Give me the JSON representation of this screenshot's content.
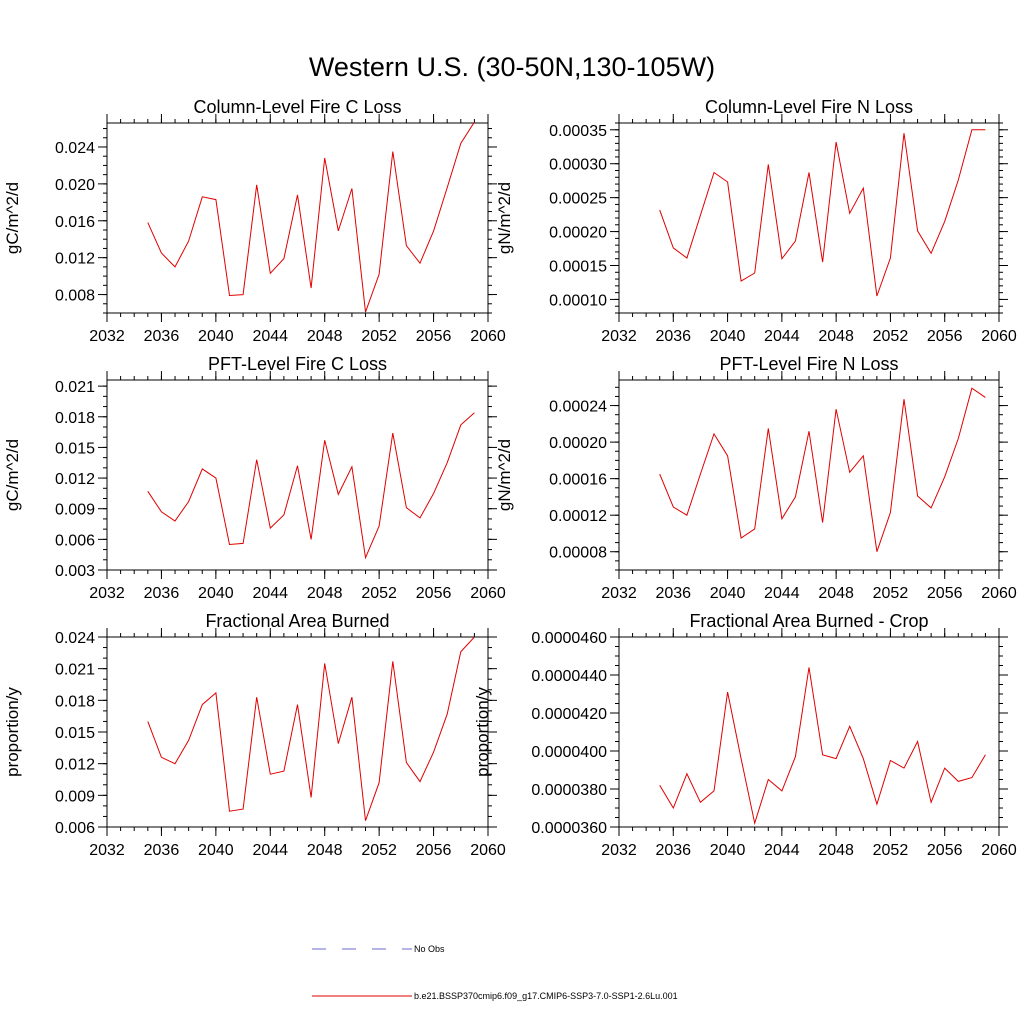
{
  "page_title": "Western U.S. (30-50N,130-105W)",
  "legend": [
    {
      "label": "No Obs",
      "color": "#6a6acd",
      "style": "dashed"
    },
    {
      "label": "b.e21.BSSP370cmip6.f09_g17.CMIP6-SSP3-7.0-SSP1-2.6Lu.001",
      "color": "#e00000",
      "style": "solid"
    }
  ],
  "chart_data": [
    {
      "type": "line",
      "title": "Column-Level Fire C Loss",
      "ylabel": "gC/m^2/d",
      "xlabel": "",
      "xlim": [
        2032,
        2060
      ],
      "ylim": [
        0.006,
        0.0266
      ],
      "xticks": [
        "2032",
        "2036",
        "2040",
        "2044",
        "2048",
        "2052",
        "2056",
        "2060"
      ],
      "yticks": [
        {
          "v": 0.008,
          "label": "0.008"
        },
        {
          "v": 0.012,
          "label": "0.012"
        },
        {
          "v": 0.016,
          "label": "0.016"
        },
        {
          "v": 0.02,
          "label": "0.020"
        },
        {
          "v": 0.024,
          "label": "0.024"
        }
      ],
      "yminor_step": 0.001,
      "x": [
        2035,
        2036,
        2037,
        2038,
        2039,
        2040,
        2041,
        2042,
        2043,
        2044,
        2045,
        2046,
        2047,
        2048,
        2049,
        2050,
        2051,
        2052,
        2053,
        2054,
        2055,
        2056,
        2057,
        2058,
        2059
      ],
      "series": [
        {
          "color": "#e00000",
          "values": [
            0.0158,
            0.0125,
            0.011,
            0.0138,
            0.0186,
            0.0183,
            0.0079,
            0.008,
            0.0199,
            0.0103,
            0.0119,
            0.0188,
            0.0087,
            0.0228,
            0.0149,
            0.0195,
            0.0061,
            0.0102,
            0.0235,
            0.0133,
            0.0114,
            0.0149,
            0.0196,
            0.0244,
            0.0267
          ]
        }
      ]
    },
    {
      "type": "line",
      "title": "Column-Level Fire N Loss",
      "ylabel": "gN/m^2/d",
      "xlabel": "",
      "xlim": [
        2032,
        2060
      ],
      "ylim": [
        8e-05,
        0.00036
      ],
      "xticks": [
        "2032",
        "2036",
        "2040",
        "2044",
        "2048",
        "2052",
        "2056",
        "2060"
      ],
      "yticks": [
        {
          "v": 0.0001,
          "label": "0.00010"
        },
        {
          "v": 0.00015,
          "label": "0.00015"
        },
        {
          "v": 0.0002,
          "label": "0.00020"
        },
        {
          "v": 0.00025,
          "label": "0.00025"
        },
        {
          "v": 0.0003,
          "label": "0.00030"
        },
        {
          "v": 0.00035,
          "label": "0.00035"
        }
      ],
      "yminor_step": 1e-05,
      "x": [
        2035,
        2036,
        2037,
        2038,
        2039,
        2040,
        2041,
        2042,
        2043,
        2044,
        2045,
        2046,
        2047,
        2048,
        2049,
        2050,
        2051,
        2052,
        2053,
        2054,
        2055,
        2056,
        2057,
        2058,
        2059
      ],
      "series": [
        {
          "color": "#e00000",
          "values": [
            0.000232,
            0.000176,
            0.000161,
            0.000224,
            0.000287,
            0.000273,
            0.000127,
            0.000139,
            0.000299,
            0.00016,
            0.000186,
            0.000287,
            0.000155,
            0.000332,
            0.000227,
            0.000264,
            0.000105,
            0.000161,
            0.000345,
            0.000201,
            0.000168,
            0.000215,
            0.000276,
            0.00035,
            0.00035
          ]
        }
      ]
    },
    {
      "type": "line",
      "title": "PFT-Level Fire C Loss",
      "ylabel": "gC/m^2/d",
      "xlabel": "",
      "xlim": [
        2032,
        2060
      ],
      "ylim": [
        0.003,
        0.0216
      ],
      "xticks": [
        "2032",
        "2036",
        "2040",
        "2044",
        "2048",
        "2052",
        "2056",
        "2060"
      ],
      "yticks": [
        {
          "v": 0.003,
          "label": "0.003"
        },
        {
          "v": 0.006,
          "label": "0.006"
        },
        {
          "v": 0.009,
          "label": "0.009"
        },
        {
          "v": 0.012,
          "label": "0.012"
        },
        {
          "v": 0.015,
          "label": "0.015"
        },
        {
          "v": 0.018,
          "label": "0.018"
        },
        {
          "v": 0.021,
          "label": "0.021"
        }
      ],
      "yminor_step": 0.001,
      "x": [
        2035,
        2036,
        2037,
        2038,
        2039,
        2040,
        2041,
        2042,
        2043,
        2044,
        2045,
        2046,
        2047,
        2048,
        2049,
        2050,
        2051,
        2052,
        2053,
        2054,
        2055,
        2056,
        2057,
        2058,
        2059
      ],
      "series": [
        {
          "color": "#e00000",
          "values": [
            0.0107,
            0.0087,
            0.0078,
            0.0097,
            0.0129,
            0.012,
            0.0055,
            0.0056,
            0.0138,
            0.0071,
            0.0084,
            0.0132,
            0.006,
            0.0157,
            0.0104,
            0.0131,
            0.0042,
            0.0073,
            0.0164,
            0.0091,
            0.0081,
            0.0105,
            0.0135,
            0.0172,
            0.0184
          ]
        }
      ]
    },
    {
      "type": "line",
      "title": "PFT-Level Fire N Loss",
      "ylabel": "gN/m^2/d",
      "xlabel": "",
      "xlim": [
        2032,
        2060
      ],
      "ylim": [
        6e-05,
        0.000268
      ],
      "xticks": [
        "2032",
        "2036",
        "2040",
        "2044",
        "2048",
        "2052",
        "2056",
        "2060"
      ],
      "yticks": [
        {
          "v": 8e-05,
          "label": "0.00008"
        },
        {
          "v": 0.00012,
          "label": "0.00012"
        },
        {
          "v": 0.00016,
          "label": "0.00016"
        },
        {
          "v": 0.0002,
          "label": "0.00020"
        },
        {
          "v": 0.00024,
          "label": "0.00024"
        }
      ],
      "yminor_step": 1e-05,
      "x": [
        2035,
        2036,
        2037,
        2038,
        2039,
        2040,
        2041,
        2042,
        2043,
        2044,
        2045,
        2046,
        2047,
        2048,
        2049,
        2050,
        2051,
        2052,
        2053,
        2054,
        2055,
        2056,
        2057,
        2058,
        2059
      ],
      "series": [
        {
          "color": "#e00000",
          "values": [
            0.000165,
            0.000129,
            0.00012,
            0.000165,
            0.000209,
            0.000185,
            9.5e-05,
            0.000105,
            0.000215,
            0.000116,
            0.00014,
            0.000212,
            0.000112,
            0.000236,
            0.000167,
            0.000185,
            8e-05,
            0.000123,
            0.000247,
            0.000141,
            0.000128,
            0.000162,
            0.000204,
            0.000259,
            0.000249
          ]
        }
      ]
    },
    {
      "type": "line",
      "title": "Fractional Area Burned",
      "ylabel": "proportion/y",
      "xlabel": "",
      "xlim": [
        2032,
        2060
      ],
      "ylim": [
        0.006,
        0.024
      ],
      "xticks": [
        "2032",
        "2036",
        "2040",
        "2044",
        "2048",
        "2052",
        "2056",
        "2060"
      ],
      "yticks": [
        {
          "v": 0.006,
          "label": "0.006"
        },
        {
          "v": 0.009,
          "label": "0.009"
        },
        {
          "v": 0.012,
          "label": "0.012"
        },
        {
          "v": 0.015,
          "label": "0.015"
        },
        {
          "v": 0.018,
          "label": "0.018"
        },
        {
          "v": 0.021,
          "label": "0.021"
        },
        {
          "v": 0.024,
          "label": "0.024"
        }
      ],
      "yminor_step": 0.001,
      "x": [
        2035,
        2036,
        2037,
        2038,
        2039,
        2040,
        2041,
        2042,
        2043,
        2044,
        2045,
        2046,
        2047,
        2048,
        2049,
        2050,
        2051,
        2052,
        2053,
        2054,
        2055,
        2056,
        2057,
        2058,
        2059
      ],
      "series": [
        {
          "color": "#e00000",
          "values": [
            0.016,
            0.0126,
            0.012,
            0.0142,
            0.0176,
            0.0187,
            0.0075,
            0.0077,
            0.0183,
            0.011,
            0.0113,
            0.0176,
            0.0088,
            0.0215,
            0.0139,
            0.0183,
            0.0066,
            0.0102,
            0.0217,
            0.0121,
            0.0103,
            0.0131,
            0.0167,
            0.0226,
            0.024
          ]
        }
      ]
    },
    {
      "type": "line",
      "title": "Fractional Area Burned - Crop",
      "ylabel": "proportion/y",
      "xlabel": "",
      "xlim": [
        2032,
        2060
      ],
      "ylim": [
        3.6e-05,
        4.6e-05
      ],
      "xticks": [
        "2032",
        "2036",
        "2040",
        "2044",
        "2048",
        "2052",
        "2056",
        "2060"
      ],
      "yticks": [
        {
          "v": 3.6e-05,
          "label": "0.0000360"
        },
        {
          "v": 3.8e-05,
          "label": "0.0000380"
        },
        {
          "v": 4e-05,
          "label": "0.0000400"
        },
        {
          "v": 4.2e-05,
          "label": "0.0000420"
        },
        {
          "v": 4.4e-05,
          "label": "0.0000440"
        },
        {
          "v": 4.6e-05,
          "label": "0.0000460"
        }
      ],
      "yminor_step": 5e-07,
      "x": [
        2035,
        2036,
        2037,
        2038,
        2039,
        2040,
        2041,
        2042,
        2043,
        2044,
        2045,
        2046,
        2047,
        2048,
        2049,
        2050,
        2051,
        2052,
        2053,
        2054,
        2055,
        2056,
        2057,
        2058,
        2059
      ],
      "series": [
        {
          "color": "#e00000",
          "values": [
            3.82e-05,
            3.7e-05,
            3.88e-05,
            3.73e-05,
            3.79e-05,
            4.31e-05,
            3.96e-05,
            3.62e-05,
            3.85e-05,
            3.79e-05,
            3.97e-05,
            4.44e-05,
            3.98e-05,
            3.96e-05,
            4.13e-05,
            3.96e-05,
            3.72e-05,
            3.95e-05,
            3.91e-05,
            4.05e-05,
            3.73e-05,
            3.91e-05,
            3.84e-05,
            3.86e-05,
            3.98e-05
          ]
        }
      ]
    }
  ]
}
